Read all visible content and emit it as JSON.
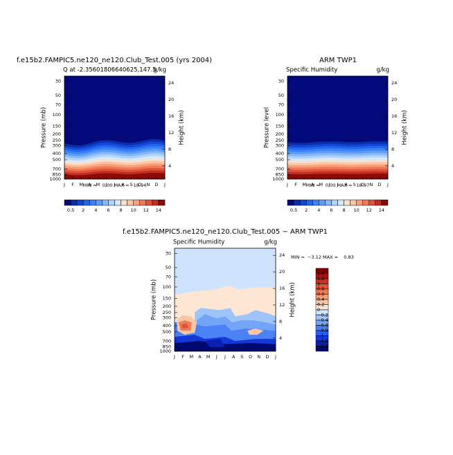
{
  "chart_data": [
    {
      "type": "contour",
      "title": "f.e15b2.FAMPIC5.ne120_ne120.Club_Test.005 (yrs 2004)",
      "subtitle": "Q at -2.35601806640625,147.5",
      "units": "g/kg",
      "stats": "MIN =    0.00 MAX =   18.94",
      "ylabel": "Pressure (mb)",
      "y2label": "Height (km)",
      "categories": [
        "J",
        "F",
        "M",
        "A",
        "M",
        "J",
        "J",
        "A",
        "S",
        "O",
        "N",
        "D",
        "J"
      ],
      "ylim": [
        1000,
        25
      ],
      "ylog": true,
      "yticks": [
        30,
        50,
        70,
        100,
        150,
        200,
        250,
        300,
        400,
        500,
        700,
        850,
        1000
      ],
      "y2lim": [
        0.8,
        25.7
      ],
      "y2ticks": [
        4,
        8,
        12,
        16,
        20,
        24
      ],
      "colorbar": {
        "orientation": "horizontal",
        "levels": [
          0.5,
          1,
          2,
          3,
          4,
          5,
          6,
          7,
          8,
          9,
          10,
          11,
          12,
          13,
          14
        ],
        "ticks": [
          0.5,
          2,
          4,
          6,
          8,
          10,
          12,
          14
        ],
        "colors": [
          "#03087a",
          "#0a2ea8",
          "#1446d6",
          "#2266ee",
          "#3b82f6",
          "#5d9cf8",
          "#86b8fa",
          "#b0d2fb",
          "#d6e8fd",
          "#f6e2d3",
          "#fcc5a4",
          "#f9a07a",
          "#f07a55",
          "#e0523a",
          "#c42d22",
          "#8b0a0a"
        ]
      }
    },
    {
      "type": "contour",
      "title": "ARM TWP1",
      "subtitle": "Specific Humidity",
      "units": "g/kg",
      "stats": "MIN =    0.00 MAX =   18.97",
      "ylabel": "Pressure  level",
      "y2label": "Height (km)",
      "categories": [
        "J",
        "F",
        "M",
        "A",
        "M",
        "J",
        "J",
        "A",
        "S",
        "O",
        "N",
        "D",
        "J"
      ],
      "ylim": [
        1000,
        25
      ],
      "ylog": true,
      "yticks": [
        30,
        50,
        70,
        100,
        150,
        200,
        250,
        300,
        400,
        500,
        700,
        850,
        1000
      ],
      "y2lim": [
        0.8,
        25.7
      ],
      "y2ticks": [
        4,
        8,
        12,
        16,
        20,
        24
      ],
      "colorbar": {
        "orientation": "horizontal",
        "levels": [
          0.5,
          1,
          2,
          3,
          4,
          5,
          6,
          7,
          8,
          9,
          10,
          11,
          12,
          13,
          14
        ],
        "ticks": [
          0.5,
          2,
          4,
          6,
          8,
          10,
          12,
          14
        ],
        "colors": [
          "#03087a",
          "#0a2ea8",
          "#1446d6",
          "#2266ee",
          "#3b82f6",
          "#5d9cf8",
          "#86b8fa",
          "#b0d2fb",
          "#d6e8fd",
          "#f6e2d3",
          "#fcc5a4",
          "#f9a07a",
          "#f07a55",
          "#e0523a",
          "#c42d22",
          "#8b0a0a"
        ]
      }
    },
    {
      "type": "contour",
      "title": "f.e15b2.FAMPIC5.ne120_ne120.Club_Test.005 − ARM TWP1",
      "subtitle": "Specific Humidity",
      "units": "g/kg",
      "stats": "MIN =  −3.12 MAX =    0.83",
      "ylabel": "Pressure (mb)",
      "y2label": "Height (km)",
      "categories": [
        "J",
        "F",
        "M",
        "A",
        "M",
        "J",
        "J",
        "A",
        "S",
        "O",
        "N",
        "D",
        "J"
      ],
      "ylim": [
        1000,
        25
      ],
      "ylog": true,
      "yticks": [
        30,
        50,
        70,
        100,
        150,
        200,
        250,
        300,
        400,
        500,
        700,
        850,
        1000
      ],
      "y2lim": [
        0.8,
        25.7
      ],
      "y2ticks": [
        4,
        8,
        12,
        16,
        20,
        24
      ],
      "colorbar": {
        "orientation": "vertical",
        "ticks": [
          1.4,
          1.2,
          1,
          0.8,
          0.6,
          0.4,
          0.2,
          0,
          {
            "value": -0.2,
            "label": "−0.2"
          },
          {
            "value": -0.4,
            "label": "−0.4"
          },
          {
            "value": -0.6,
            "label": "−0.6"
          },
          {
            "value": -0.8,
            "label": "−0.8"
          },
          {
            "value": -1,
            "label": "−1"
          },
          {
            "value": -1.2,
            "label": "−1.2"
          },
          {
            "value": -1.4,
            "label": "−1.4"
          }
        ],
        "colors": [
          "#7a0505",
          "#a8150f",
          "#c93124",
          "#e0533b",
          "#ee7a58",
          "#f6a07c",
          "#fbc6a5",
          "#fde6d4",
          "#cfe3fc",
          "#9fc4fa",
          "#74a4f8",
          "#4a82f5",
          "#2a5cf0",
          "#1438d8",
          "#0a1fb0",
          "#000a6e"
        ]
      }
    }
  ]
}
